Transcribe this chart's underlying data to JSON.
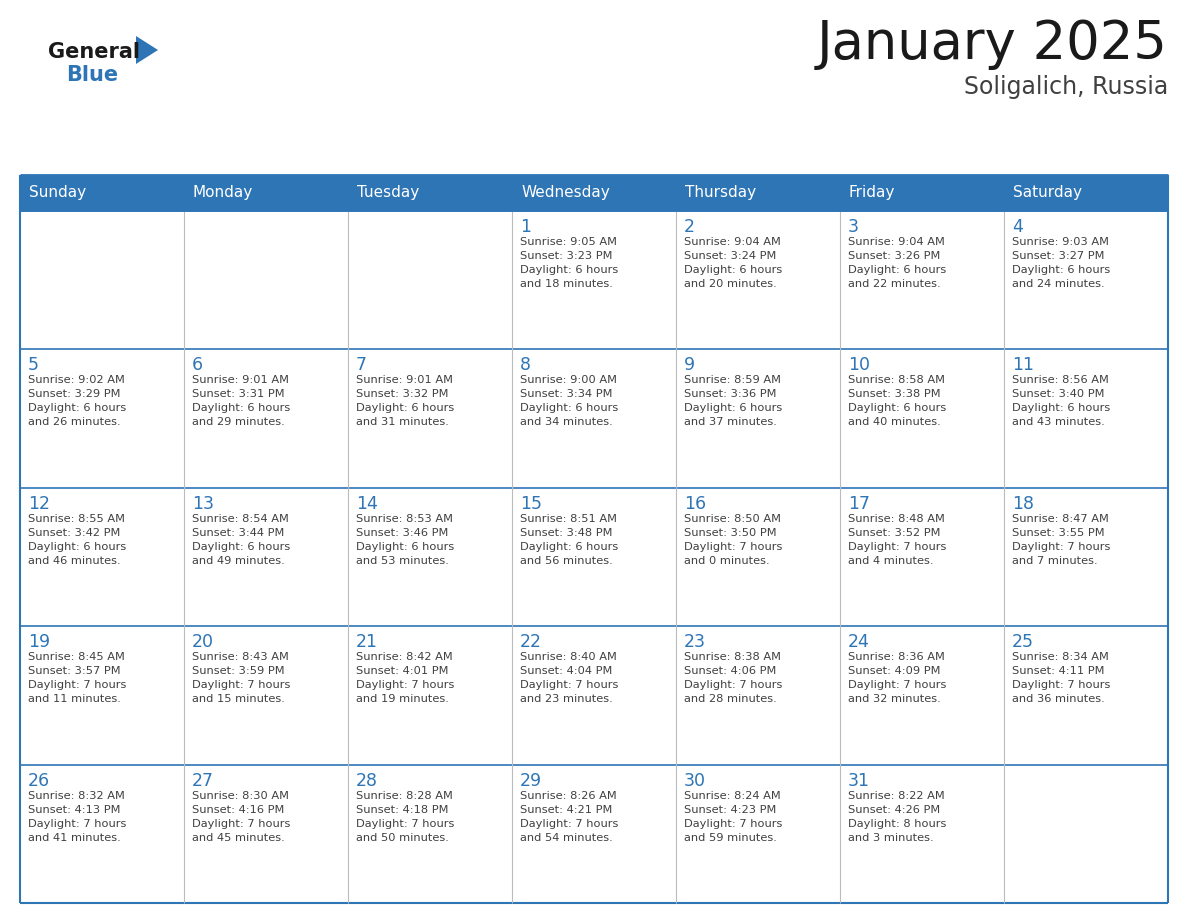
{
  "title": "January 2025",
  "subtitle": "Soligalich, Russia",
  "days_of_week": [
    "Sunday",
    "Monday",
    "Tuesday",
    "Wednesday",
    "Thursday",
    "Friday",
    "Saturday"
  ],
  "header_bg": "#2E75B6",
  "header_text_color": "#FFFFFF",
  "cell_bg": "#FFFFFF",
  "border_color": "#2E75B6",
  "row_divider_color": "#2E75B6",
  "col_divider_color": "#BBBBBB",
  "day_number_color": "#2E75B6",
  "cell_text_color": "#404040",
  "title_color": "#1A1A1A",
  "subtitle_color": "#404040",
  "logo_general_color": "#1A1A1A",
  "logo_blue_color": "#2E75B6",
  "calendar_data": [
    [
      {
        "day": null,
        "info": null
      },
      {
        "day": null,
        "info": null
      },
      {
        "day": null,
        "info": null
      },
      {
        "day": 1,
        "info": "Sunrise: 9:05 AM\nSunset: 3:23 PM\nDaylight: 6 hours\nand 18 minutes."
      },
      {
        "day": 2,
        "info": "Sunrise: 9:04 AM\nSunset: 3:24 PM\nDaylight: 6 hours\nand 20 minutes."
      },
      {
        "day": 3,
        "info": "Sunrise: 9:04 AM\nSunset: 3:26 PM\nDaylight: 6 hours\nand 22 minutes."
      },
      {
        "day": 4,
        "info": "Sunrise: 9:03 AM\nSunset: 3:27 PM\nDaylight: 6 hours\nand 24 minutes."
      }
    ],
    [
      {
        "day": 5,
        "info": "Sunrise: 9:02 AM\nSunset: 3:29 PM\nDaylight: 6 hours\nand 26 minutes."
      },
      {
        "day": 6,
        "info": "Sunrise: 9:01 AM\nSunset: 3:31 PM\nDaylight: 6 hours\nand 29 minutes."
      },
      {
        "day": 7,
        "info": "Sunrise: 9:01 AM\nSunset: 3:32 PM\nDaylight: 6 hours\nand 31 minutes."
      },
      {
        "day": 8,
        "info": "Sunrise: 9:00 AM\nSunset: 3:34 PM\nDaylight: 6 hours\nand 34 minutes."
      },
      {
        "day": 9,
        "info": "Sunrise: 8:59 AM\nSunset: 3:36 PM\nDaylight: 6 hours\nand 37 minutes."
      },
      {
        "day": 10,
        "info": "Sunrise: 8:58 AM\nSunset: 3:38 PM\nDaylight: 6 hours\nand 40 minutes."
      },
      {
        "day": 11,
        "info": "Sunrise: 8:56 AM\nSunset: 3:40 PM\nDaylight: 6 hours\nand 43 minutes."
      }
    ],
    [
      {
        "day": 12,
        "info": "Sunrise: 8:55 AM\nSunset: 3:42 PM\nDaylight: 6 hours\nand 46 minutes."
      },
      {
        "day": 13,
        "info": "Sunrise: 8:54 AM\nSunset: 3:44 PM\nDaylight: 6 hours\nand 49 minutes."
      },
      {
        "day": 14,
        "info": "Sunrise: 8:53 AM\nSunset: 3:46 PM\nDaylight: 6 hours\nand 53 minutes."
      },
      {
        "day": 15,
        "info": "Sunrise: 8:51 AM\nSunset: 3:48 PM\nDaylight: 6 hours\nand 56 minutes."
      },
      {
        "day": 16,
        "info": "Sunrise: 8:50 AM\nSunset: 3:50 PM\nDaylight: 7 hours\nand 0 minutes."
      },
      {
        "day": 17,
        "info": "Sunrise: 8:48 AM\nSunset: 3:52 PM\nDaylight: 7 hours\nand 4 minutes."
      },
      {
        "day": 18,
        "info": "Sunrise: 8:47 AM\nSunset: 3:55 PM\nDaylight: 7 hours\nand 7 minutes."
      }
    ],
    [
      {
        "day": 19,
        "info": "Sunrise: 8:45 AM\nSunset: 3:57 PM\nDaylight: 7 hours\nand 11 minutes."
      },
      {
        "day": 20,
        "info": "Sunrise: 8:43 AM\nSunset: 3:59 PM\nDaylight: 7 hours\nand 15 minutes."
      },
      {
        "day": 21,
        "info": "Sunrise: 8:42 AM\nSunset: 4:01 PM\nDaylight: 7 hours\nand 19 minutes."
      },
      {
        "day": 22,
        "info": "Sunrise: 8:40 AM\nSunset: 4:04 PM\nDaylight: 7 hours\nand 23 minutes."
      },
      {
        "day": 23,
        "info": "Sunrise: 8:38 AM\nSunset: 4:06 PM\nDaylight: 7 hours\nand 28 minutes."
      },
      {
        "day": 24,
        "info": "Sunrise: 8:36 AM\nSunset: 4:09 PM\nDaylight: 7 hours\nand 32 minutes."
      },
      {
        "day": 25,
        "info": "Sunrise: 8:34 AM\nSunset: 4:11 PM\nDaylight: 7 hours\nand 36 minutes."
      }
    ],
    [
      {
        "day": 26,
        "info": "Sunrise: 8:32 AM\nSunset: 4:13 PM\nDaylight: 7 hours\nand 41 minutes."
      },
      {
        "day": 27,
        "info": "Sunrise: 8:30 AM\nSunset: 4:16 PM\nDaylight: 7 hours\nand 45 minutes."
      },
      {
        "day": 28,
        "info": "Sunrise: 8:28 AM\nSunset: 4:18 PM\nDaylight: 7 hours\nand 50 minutes."
      },
      {
        "day": 29,
        "info": "Sunrise: 8:26 AM\nSunset: 4:21 PM\nDaylight: 7 hours\nand 54 minutes."
      },
      {
        "day": 30,
        "info": "Sunrise: 8:24 AM\nSunset: 4:23 PM\nDaylight: 7 hours\nand 59 minutes."
      },
      {
        "day": 31,
        "info": "Sunrise: 8:22 AM\nSunset: 4:26 PM\nDaylight: 8 hours\nand 3 minutes."
      },
      {
        "day": null,
        "info": null
      }
    ]
  ]
}
